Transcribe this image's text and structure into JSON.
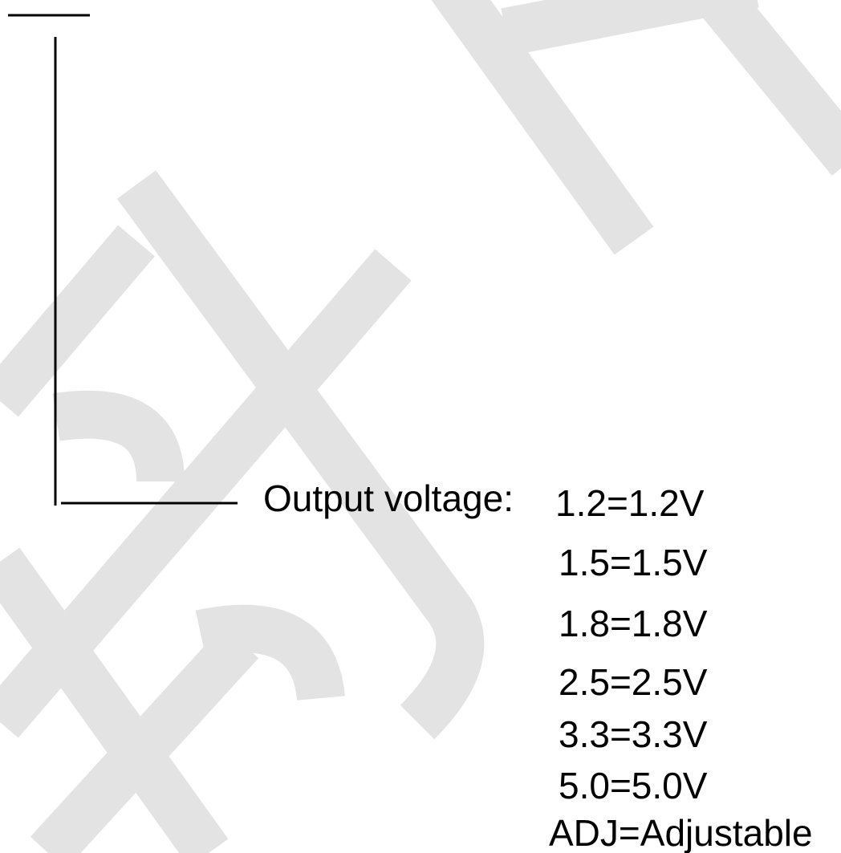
{
  "label": "Output voltage:",
  "options": [
    "1.2=1.2V",
    "1.5=1.5V",
    "1.8=1.8V",
    "2.5=2.5V",
    "3.3=3.3V",
    "5.0=5.0V",
    "ADJ=Adjustable"
  ]
}
